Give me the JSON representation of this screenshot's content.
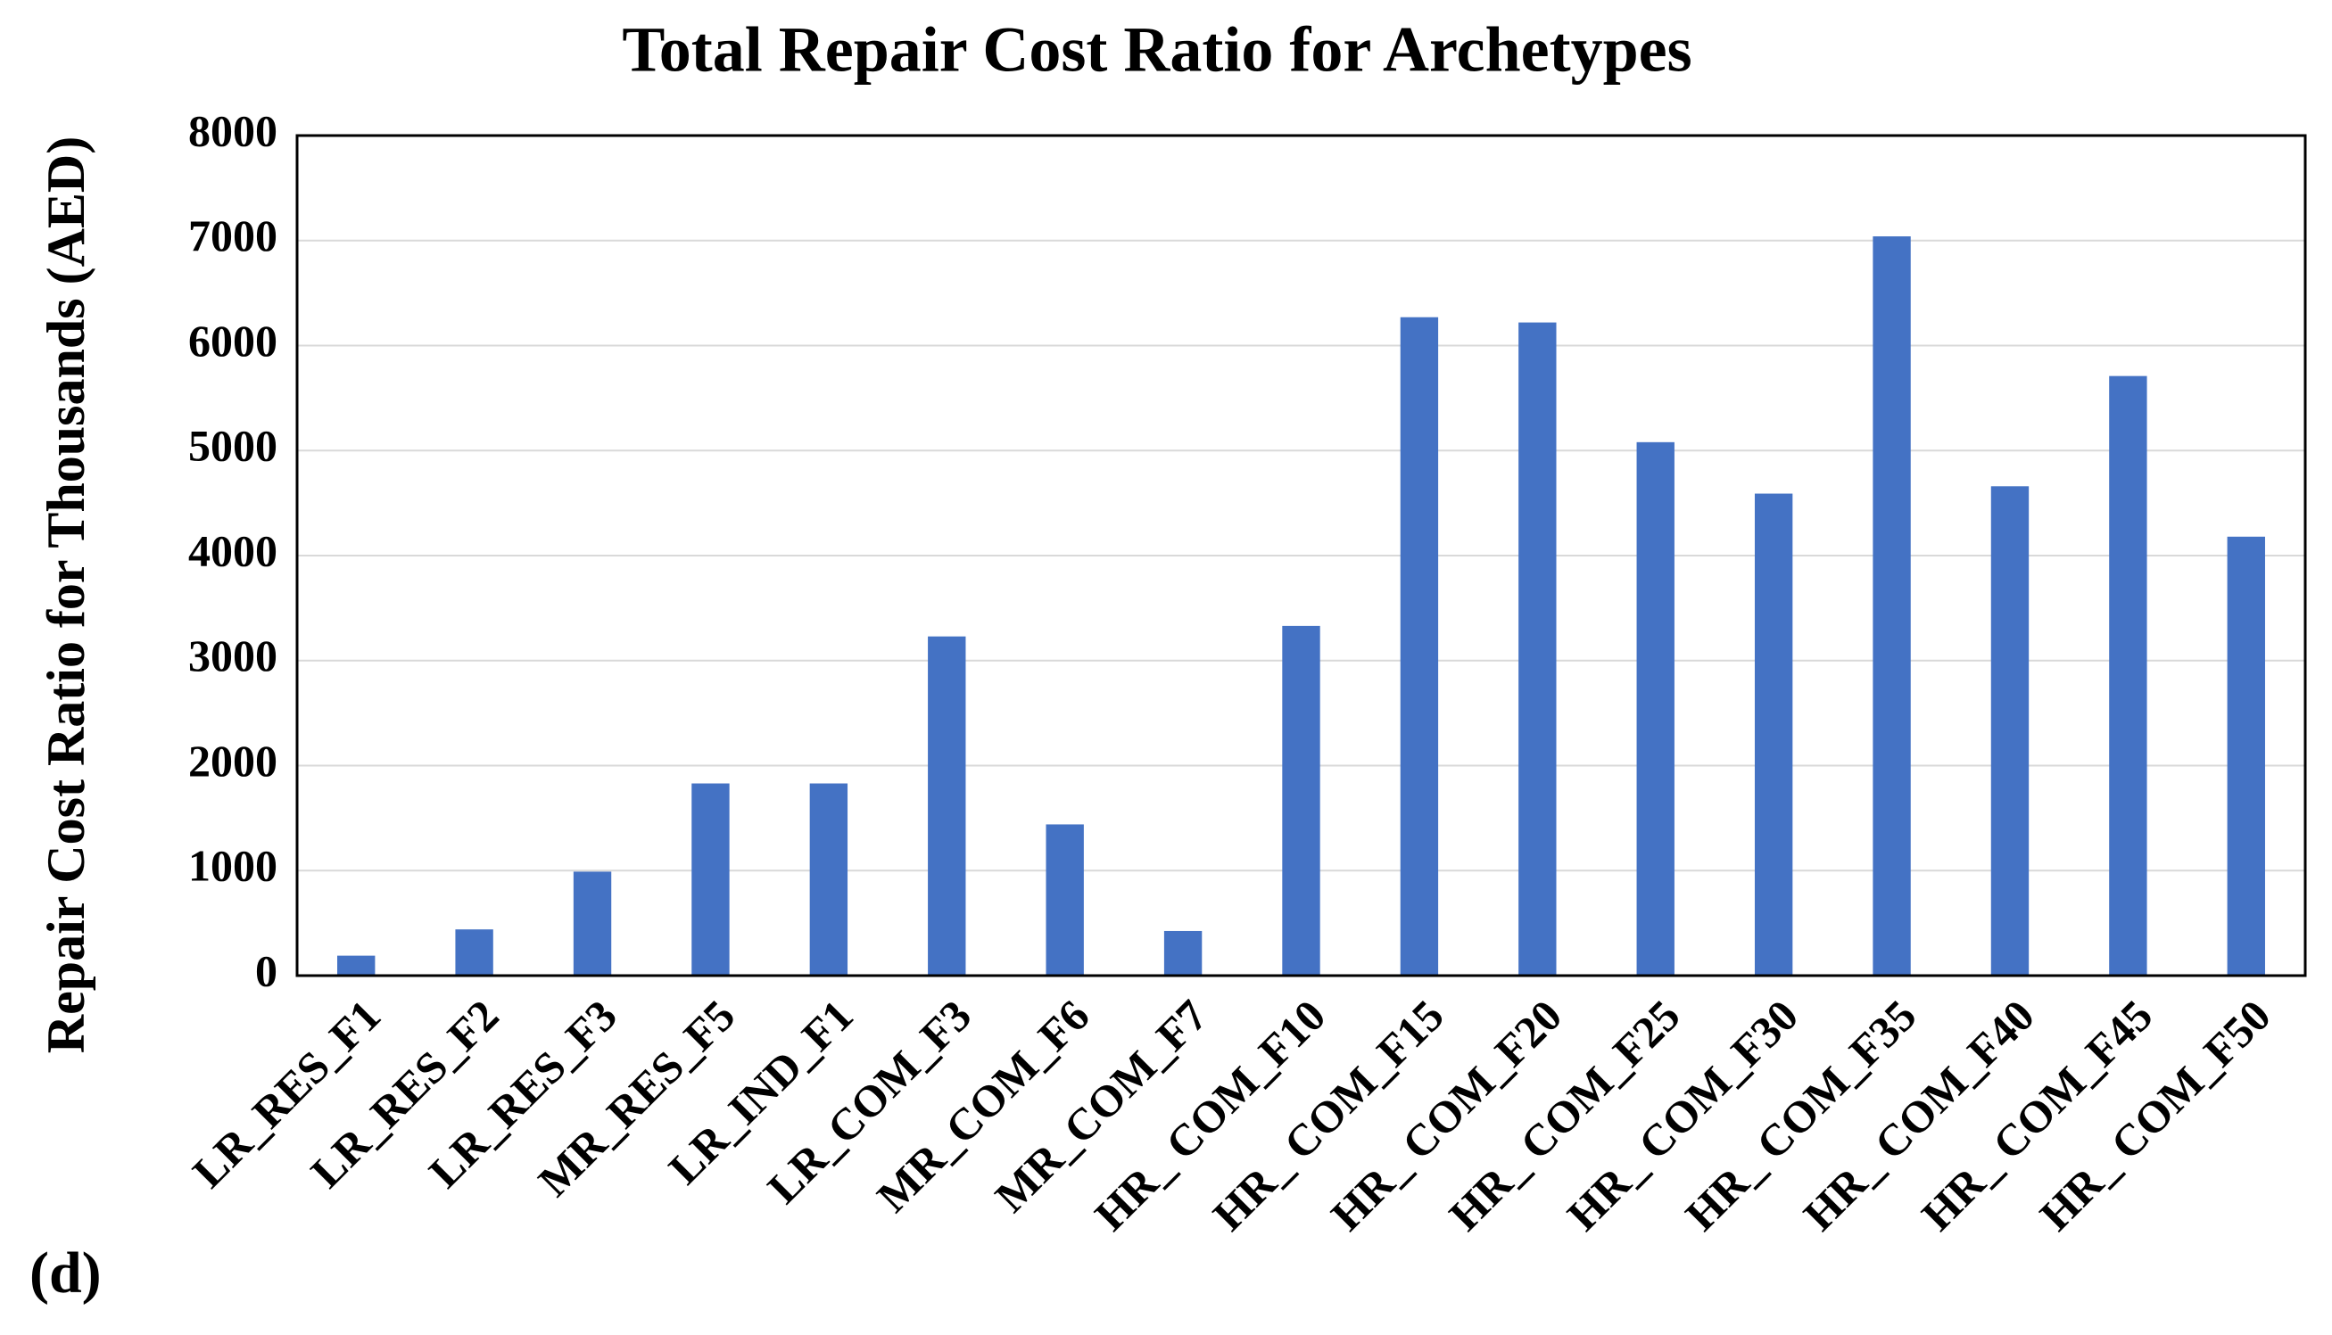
{
  "chart_data": {
    "type": "bar",
    "title": "Total Repair Cost Ratio for Archetypes",
    "y_label": "Repair Cost Ratio for Thousands (AED)",
    "panel_label": "(d)",
    "categories": [
      "LR_RES_F1",
      "LR_RES_F2",
      "LR_RES_F3",
      "MR_RES_F5",
      "LR_IND_F1",
      "LR_COM_F3",
      "MR_COM_F6",
      "MR_COM_F7",
      "HR_ COM_F10",
      "HR_ COM_F15",
      "HR_ COM_F20",
      "HR_ COM_F25",
      "HR_ COM_F30",
      "HR_ COM_F35",
      "HR_ COM_F40",
      "HR_ COM_F45",
      "HR_ COM_F50"
    ],
    "values": [
      190,
      440,
      990,
      1830,
      1830,
      3230,
      1440,
      425,
      3330,
      6270,
      6220,
      5080,
      4590,
      7040,
      4660,
      5710,
      4180
    ],
    "color": "#4472c4",
    "ylim": [
      0,
      8000
    ],
    "yticks": [
      0,
      1000,
      2000,
      3000,
      4000,
      5000,
      6000,
      7000,
      8000
    ],
    "grid": true
  }
}
